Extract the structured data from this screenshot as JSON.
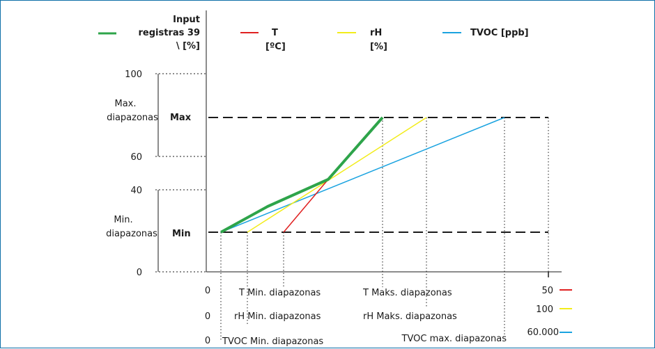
{
  "colors": {
    "input": "#2ea44a",
    "t": "#e02020",
    "rh": "#f2ec1a",
    "tvoc": "#1aa3e0",
    "axis": "#1a1a1a"
  },
  "legend": {
    "input_l1": "Input",
    "input_l2": "registras 39",
    "input_l3": "\\ [%]",
    "t_l1": "T",
    "t_l2": "[ºC]",
    "rh_l1": "rH",
    "rh_l2": "[%]",
    "tvoc": "TVOC [ppb]"
  },
  "y_ticks": {
    "t100": "100",
    "t60": "60",
    "t40": "40",
    "t0": "0"
  },
  "ranges": {
    "max_l1": "Max.",
    "max_l2": "diapazonas",
    "max_tag": "Max",
    "min_l1": "Min.",
    "min_l2": "diapazonas",
    "min_tag": "Min"
  },
  "x_labels": {
    "zero1": "0",
    "zero2": "0",
    "zero3": "0",
    "t_min": "T Min. diapazonas",
    "rh_min": "rH Min. diapazonas",
    "tvoc_min": "TVOC Min. diapazonas",
    "t_max": "T Maks. diapazonas",
    "rh_max": "rH Maks. diapazonas",
    "tvoc_max": "TVOC max. diapazonas"
  },
  "scale_end": {
    "t": "50",
    "rh": "100",
    "tvoc": "60.000"
  }
}
